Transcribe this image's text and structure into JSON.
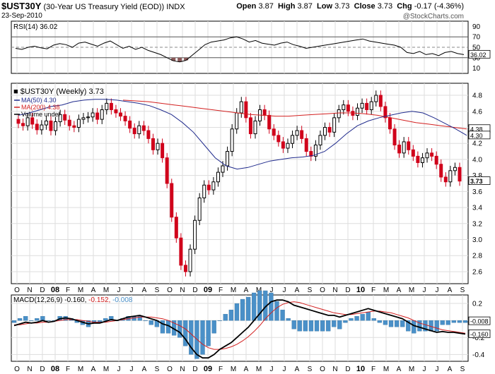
{
  "header": {
    "symbol": "$UST30Y",
    "description": "(30-Year US Treasury Yield (EOD))",
    "exchange": "INDX",
    "date": "23-Sep-2010",
    "open_label": "Open",
    "open": "3.87",
    "high_label": "High",
    "high": "3.87",
    "low_label": "Low",
    "low": "3.73",
    "close_label": "Close",
    "close": "3.73",
    "chg_label": "Chg",
    "chg": "-0.17 (-4.36%)",
    "watermark": "@StockCharts.com"
  },
  "colors": {
    "up": "#000000",
    "down": "#d0021b",
    "ma50": "#1f2a8c",
    "ma200": "#d32020",
    "macd": "#000000",
    "signal": "#d32020",
    "hist": "#4a90c8",
    "rsi_fill": "#8b5a5a"
  },
  "chart_data": [
    {
      "type": "line",
      "panel": "rsi",
      "label": "RSI(14) 36.02",
      "current_tag": "36.02",
      "ylim": [
        0,
        100
      ],
      "yticks": [
        10,
        30,
        50,
        70,
        90
      ],
      "ref_lines": [
        30,
        50,
        70
      ],
      "values": [
        48,
        46,
        50,
        52,
        49,
        47,
        54,
        57,
        55,
        50,
        58,
        60,
        56,
        52,
        58,
        62,
        55,
        48,
        52,
        46,
        50,
        44,
        40,
        36,
        30,
        24,
        22,
        25,
        35,
        45,
        55,
        60,
        62,
        64,
        68,
        70,
        66,
        60,
        63,
        58,
        56,
        54,
        58,
        60,
        55,
        52,
        48,
        50,
        52,
        54,
        56,
        58,
        60,
        62,
        64,
        66,
        62,
        60,
        58,
        56,
        54,
        50,
        40,
        38,
        42,
        36,
        38,
        34,
        40,
        42,
        38,
        36
      ]
    },
    {
      "type": "candlestick",
      "panel": "price",
      "title": "$UST30Y (Weekly) 3.73",
      "legend": [
        {
          "name": "MA(50) 4.30",
          "color": "#1f2a8c"
        },
        {
          "name": "MA(200) 4.38",
          "color": "#d32020"
        },
        {
          "name": "Volume undef",
          "color": "#000000"
        }
      ],
      "ylim": [
        2.45,
        4.95
      ],
      "yticks": [
        2.6,
        2.8,
        3.0,
        3.2,
        3.4,
        3.6,
        3.8,
        4.0,
        4.2,
        4.4,
        4.6,
        4.8
      ],
      "tags": [
        {
          "value": 4.38,
          "text": "4.38"
        },
        {
          "value": 4.3,
          "text": "4.30"
        },
        {
          "value": 3.73,
          "text": "3.73",
          "bold": true
        }
      ],
      "x_labels": [
        "O",
        "N",
        "D",
        "08",
        "F",
        "M",
        "A",
        "M",
        "J",
        "J",
        "A",
        "S",
        "O",
        "N",
        "D",
        "09",
        "F",
        "M",
        "A",
        "M",
        "J",
        "J",
        "A",
        "S",
        "O",
        "N",
        "D",
        "10",
        "F",
        "M",
        "A",
        "M",
        "J",
        "J",
        "A",
        "S"
      ],
      "closes": [
        4.45,
        4.42,
        4.52,
        4.44,
        4.37,
        4.43,
        4.48,
        4.36,
        4.47,
        4.56,
        4.49,
        4.42,
        4.4,
        4.5,
        4.52,
        4.53,
        4.58,
        4.5,
        4.62,
        4.7,
        4.62,
        4.58,
        4.54,
        4.48,
        4.39,
        4.32,
        4.42,
        4.36,
        4.26,
        4.12,
        4.2,
        4.02,
        3.7,
        3.28,
        3.02,
        2.68,
        2.6,
        2.88,
        3.24,
        3.52,
        3.68,
        3.62,
        3.72,
        3.84,
        3.92,
        4.1,
        4.38,
        4.58,
        4.72,
        4.52,
        4.32,
        4.48,
        4.62,
        4.55,
        4.38,
        4.3,
        4.22,
        4.14,
        4.2,
        4.3,
        4.36,
        4.26,
        4.1,
        4.04,
        4.18,
        4.3,
        4.4,
        4.34,
        4.52,
        4.62,
        4.68,
        4.6,
        4.55,
        4.64,
        4.7,
        4.62,
        4.72,
        4.8,
        4.66,
        4.52,
        4.38,
        4.18,
        4.08,
        4.22,
        4.12,
        4.04,
        3.96,
        4.02,
        4.08,
        4.04,
        3.94,
        3.78,
        3.72,
        3.86,
        3.9,
        3.73
      ],
      "ma50": [
        4.55,
        4.58,
        4.62,
        4.66,
        4.68,
        4.72,
        4.74,
        4.75,
        4.75,
        4.74,
        4.72,
        4.7,
        4.67,
        4.62,
        4.56,
        4.46,
        4.34,
        4.18,
        4.02,
        3.92,
        3.88,
        3.9,
        3.94,
        3.98,
        4.0,
        4.02,
        4.03,
        4.05,
        4.1,
        4.2,
        4.32,
        4.42,
        4.48,
        4.52,
        4.55,
        4.58,
        4.6,
        4.58,
        4.52,
        4.45,
        4.38,
        4.3
      ],
      "ma200": [
        4.74,
        4.73,
        4.72,
        4.7,
        4.68,
        4.66,
        4.64,
        4.62,
        4.6,
        4.58,
        4.56,
        4.55,
        4.54,
        4.54,
        4.55,
        4.56,
        4.57,
        4.58,
        4.58,
        4.57,
        4.55,
        4.52,
        4.49,
        4.46,
        4.44,
        4.42,
        4.4,
        4.38
      ]
    },
    {
      "type": "line",
      "panel": "macd",
      "label": "MACD(12,26,9) -0.160, -0.152, -0.008",
      "label_parts": {
        "name": "MACD(12,26,9)",
        "macd": "-0.160",
        "signal": "-0.152",
        "hist": "-0.008"
      },
      "tags": [
        {
          "value": -0.008,
          "text": "-0.008"
        },
        {
          "value": -0.16,
          "text": "-0.160"
        }
      ],
      "ylim": [
        -0.48,
        0.3
      ],
      "yticks": [
        -0.4,
        -0.2,
        0.0,
        0.2
      ],
      "macd": [
        -0.06,
        -0.04,
        -0.02,
        -0.03,
        -0.02,
        0.0,
        -0.02,
        -0.01,
        0.02,
        0.03,
        0.02,
        0.0,
        -0.02,
        -0.04,
        -0.03,
        -0.03,
        -0.01,
        0.01,
        0.0,
        0.02,
        0.04,
        0.05,
        0.06,
        0.04,
        0.02,
        0.0,
        -0.04,
        -0.06,
        -0.1,
        -0.14,
        -0.22,
        -0.32,
        -0.4,
        -0.44,
        -0.44,
        -0.4,
        -0.34,
        -0.3,
        -0.26,
        -0.2,
        -0.14,
        -0.08,
        0.0,
        0.08,
        0.16,
        0.22,
        0.24,
        0.24,
        0.22,
        0.18,
        0.16,
        0.14,
        0.12,
        0.1,
        0.08,
        0.06,
        0.06,
        0.04,
        0.06,
        0.08,
        0.1,
        0.12,
        0.14,
        0.12,
        0.1,
        0.08,
        0.06,
        0.04,
        0.02,
        -0.02,
        -0.06,
        -0.08,
        -0.1,
        -0.12,
        -0.14,
        -0.13,
        -0.14,
        -0.14,
        -0.15,
        -0.16
      ],
      "signal": [
        -0.05,
        -0.05,
        -0.04,
        -0.03,
        -0.03,
        -0.02,
        -0.02,
        -0.01,
        0.0,
        0.01,
        0.01,
        0.01,
        0.0,
        -0.01,
        -0.02,
        -0.02,
        -0.02,
        -0.01,
        0.0,
        0.01,
        0.02,
        0.03,
        0.04,
        0.04,
        0.04,
        0.03,
        0.02,
        0.0,
        -0.03,
        -0.06,
        -0.1,
        -0.16,
        -0.22,
        -0.28,
        -0.32,
        -0.34,
        -0.34,
        -0.33,
        -0.31,
        -0.28,
        -0.24,
        -0.19,
        -0.13,
        -0.06,
        0.02,
        0.09,
        0.15,
        0.19,
        0.21,
        0.22,
        0.21,
        0.19,
        0.17,
        0.15,
        0.13,
        0.11,
        0.09,
        0.08,
        0.07,
        0.07,
        0.08,
        0.09,
        0.1,
        0.11,
        0.11,
        0.1,
        0.09,
        0.07,
        0.05,
        0.03,
        0.0,
        -0.03,
        -0.05,
        -0.07,
        -0.09,
        -0.11,
        -0.12,
        -0.13,
        -0.14,
        -0.15
      ]
    }
  ]
}
